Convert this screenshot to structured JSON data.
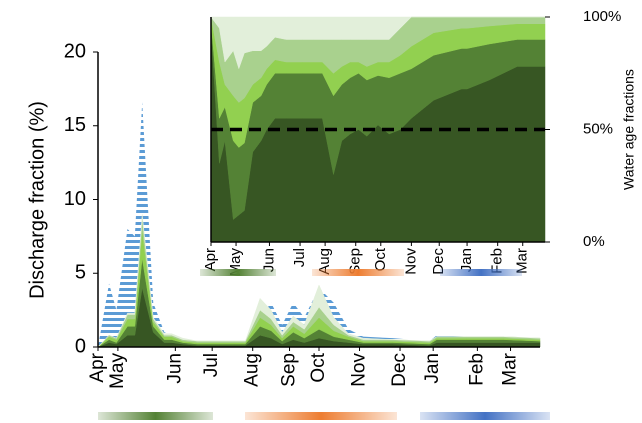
{
  "chart_data": [
    {
      "type": "area",
      "y_label": "Discharge fraction (%)",
      "ylim": [
        0,
        20
      ],
      "yticks": [
        0,
        5,
        10,
        15,
        20
      ],
      "xlim": [
        0,
        12
      ],
      "xticks": [
        {
          "value": 0,
          "label": "Apr"
        },
        {
          "value": 0.54,
          "label": "May"
        },
        {
          "value": 2.1,
          "label": "Jun"
        },
        {
          "value": 3.1,
          "label": "Jul"
        },
        {
          "value": 4.2,
          "label": "Aug"
        },
        {
          "value": 5.2,
          "label": "Sep"
        },
        {
          "value": 6.0,
          "label": "Oct"
        },
        {
          "value": 7.1,
          "label": "Nov"
        },
        {
          "value": 8.2,
          "label": "Dec"
        },
        {
          "value": 9.1,
          "label": "Jan"
        },
        {
          "value": 10.3,
          "label": "Feb"
        },
        {
          "value": 11.2,
          "label": "Mar"
        }
      ],
      "x": [
        0,
        0.3,
        0.5,
        0.8,
        1.0,
        1.2,
        1.5,
        1.8,
        2.0,
        2.3,
        2.7,
        3.0,
        3.3,
        3.7,
        4.0,
        4.4,
        4.7,
        5.0,
        5.3,
        5.6,
        6.0,
        6.4,
        6.8,
        7.2,
        8.0,
        9.0,
        9.2,
        10.0,
        11.0,
        12.0
      ],
      "series": [
        {
          "color": "#5b9bd5",
          "pattern": "stripes",
          "stacked": false,
          "values": [
            0,
            4.3,
            2.5,
            8,
            7.5,
            16.6,
            3,
            1.0,
            0.8,
            0.5,
            0.4,
            0.3,
            0.3,
            0.3,
            0.3,
            2,
            3,
            1.5,
            3,
            2,
            4,
            3,
            1.2,
            0.7,
            0.6,
            0.4,
            0.8,
            0.7,
            0.6,
            0.5
          ]
        },
        {
          "color": "#375623",
          "stacked": true,
          "values": [
            0,
            0.3,
            0.2,
            0.8,
            0.8,
            4.0,
            1.0,
            0.3,
            0.3,
            0.2,
            0.1,
            0.1,
            0.1,
            0.1,
            0.1,
            0.8,
            0.6,
            0.2,
            0.5,
            0.3,
            0.6,
            0.4,
            0.3,
            0.2,
            0.2,
            0.1,
            0.3,
            0.3,
            0.3,
            0.3
          ]
        },
        {
          "color": "#548235",
          "stacked": true,
          "values": [
            0,
            0.2,
            0.1,
            0.6,
            0.6,
            2.0,
            0.4,
            0.2,
            0.2,
            0.1,
            0.1,
            0.1,
            0.1,
            0.1,
            0.1,
            0.6,
            0.5,
            0.2,
            0.5,
            0.3,
            0.6,
            0.3,
            0.2,
            0.1,
            0.1,
            0.1,
            0.2,
            0.2,
            0.2,
            0.1
          ]
        },
        {
          "color": "#92d050",
          "stacked": true,
          "values": [
            0,
            0.2,
            0.2,
            0.5,
            0.5,
            2.0,
            0.3,
            0.2,
            0.2,
            0.1,
            0.1,
            0.1,
            0.1,
            0.1,
            0.1,
            0.6,
            0.4,
            0.2,
            0.4,
            0.3,
            0.8,
            0.4,
            0.2,
            0.1,
            0.1,
            0.1,
            0.1,
            0.1,
            0.1,
            0.1
          ]
        },
        {
          "color": "#a9d18e",
          "stacked": true,
          "values": [
            0,
            0.1,
            0.1,
            0.3,
            0.3,
            0.8,
            0.2,
            0.1,
            0.1,
            0.1,
            0.1,
            0.1,
            0.1,
            0.1,
            0.1,
            0.5,
            0.4,
            0.2,
            0.3,
            0.3,
            0.7,
            0.4,
            0.1,
            0.1,
            0.1,
            0.1,
            0.1,
            0.1,
            0.1,
            0.1
          ]
        },
        {
          "color": "#e2efda",
          "stacked": true,
          "values": [
            0,
            0,
            0,
            0.1,
            0.1,
            0.2,
            0.1,
            0.1,
            0.1,
            0.1,
            0,
            0,
            0,
            0,
            0,
            0.8,
            0.6,
            0.2,
            0.4,
            0.3,
            1.5,
            0.5,
            0.1,
            0.1,
            0,
            0,
            0,
            0,
            0,
            0
          ]
        }
      ]
    },
    {
      "type": "area",
      "y_label": "Water age fractions",
      "ylim": [
        0,
        100
      ],
      "yticks": [
        {
          "value": 0,
          "label": "0%"
        },
        {
          "value": 50,
          "label": "50%"
        },
        {
          "value": 100,
          "label": "100%"
        }
      ],
      "reference_line": 50,
      "xlim": [
        0,
        12
      ],
      "xticks": [
        {
          "value": 0,
          "label": "Apr"
        },
        {
          "value": 0.9,
          "label": "May"
        },
        {
          "value": 2.1,
          "label": "Jun"
        },
        {
          "value": 3.2,
          "label": "Jul"
        },
        {
          "value": 4.1,
          "label": "Aug"
        },
        {
          "value": 5.2,
          "label": "Sep"
        },
        {
          "value": 6.1,
          "label": "Oct"
        },
        {
          "value": 7.2,
          "label": "Nov"
        },
        {
          "value": 8.2,
          "label": "Dec"
        },
        {
          "value": 9.2,
          "label": "Jan"
        },
        {
          "value": 10.3,
          "label": "Feb"
        },
        {
          "value": 11.2,
          "label": "Mar"
        }
      ],
      "x": [
        0,
        0.3,
        0.5,
        0.8,
        1.0,
        1.2,
        1.5,
        1.8,
        2.0,
        2.3,
        2.7,
        3.0,
        3.3,
        3.7,
        4.0,
        4.4,
        4.7,
        5.0,
        5.3,
        5.6,
        6.0,
        6.4,
        6.8,
        7.2,
        8.0,
        9.0,
        9.2,
        10.0,
        11.0,
        12.0
      ],
      "series": [
        {
          "color": "#375623",
          "stacked": true,
          "values": [
            95,
            35,
            45,
            10,
            12,
            14,
            40,
            45,
            50,
            55,
            55,
            55,
            55,
            55,
            55,
            30,
            45,
            48,
            50,
            47,
            52,
            48,
            50,
            55,
            63,
            68,
            68,
            72,
            78,
            78
          ]
        },
        {
          "color": "#548235",
          "stacked": true,
          "values": [
            3,
            20,
            15,
            35,
            30,
            30,
            22,
            20,
            20,
            20,
            20,
            20,
            20,
            20,
            20,
            35,
            25,
            25,
            25,
            25,
            22,
            25,
            25,
            22,
            20,
            18,
            18,
            16,
            12,
            12
          ]
        },
        {
          "color": "#92d050",
          "stacked": true,
          "values": [
            2,
            25,
            10,
            20,
            20,
            20,
            8,
            8,
            7,
            6,
            5,
            5,
            5,
            5,
            5,
            10,
            8,
            7,
            5,
            6,
            6,
            7,
            8,
            10,
            10,
            9,
            9,
            8,
            7,
            7
          ]
        },
        {
          "color": "#a9d18e",
          "stacked": true,
          "values": [
            0,
            15,
            10,
            20,
            15,
            20,
            15,
            12,
            10,
            10,
            10,
            10,
            10,
            10,
            10,
            15,
            12,
            10,
            10,
            12,
            10,
            10,
            12,
            13,
            7,
            5,
            5,
            4,
            3,
            3
          ]
        },
        {
          "color": "#e2efda",
          "stacked": true,
          "values": [
            0,
            5,
            20,
            15,
            23,
            16,
            15,
            15,
            13,
            9,
            10,
            10,
            10,
            10,
            10,
            10,
            10,
            10,
            10,
            10,
            10,
            10,
            5,
            0,
            0,
            0,
            0,
            0,
            0,
            0
          ]
        }
      ]
    }
  ]
}
